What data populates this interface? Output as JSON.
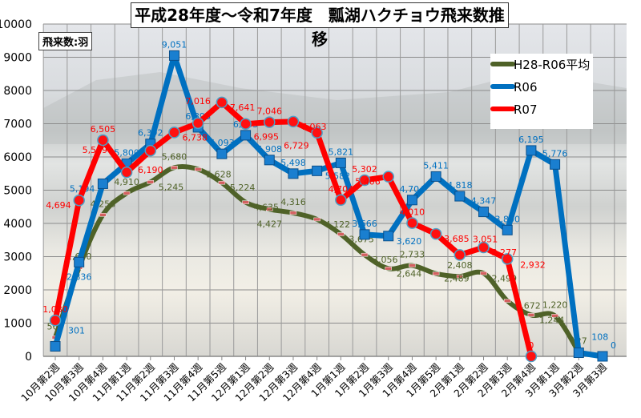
{
  "chart_data": {
    "type": "line",
    "title": "平成28年度～令和7年度　瓢湖ハクチョウ飛来数推移",
    "ylabel": "飛来数:羽",
    "ylim": [
      0,
      10000
    ],
    "yticks": [
      0,
      1000,
      2000,
      3000,
      4000,
      5000,
      6000,
      7000,
      8000,
      9000,
      10000
    ],
    "grid": true,
    "legend_position": "top-right",
    "categories": [
      "10月第2週",
      "10月第3週",
      "10月第4週",
      "11月第1週",
      "11月第2週",
      "11月第3週",
      "11月第4週",
      "11月第5週",
      "12月第1週",
      "12月第2週",
      "12月第3週",
      "12月第4週",
      "1月第1週",
      "1月第2週",
      "1月第3週",
      "1月第4週",
      "1月第5週",
      "2月第1週",
      "2月第2週",
      "2月第3週",
      "2月第4週",
      "3月第1週",
      "3月第2週",
      "3月第3週"
    ],
    "series": [
      {
        "name": "H28-R06平均",
        "color": "#4f6228",
        "smooth": true,
        "marker": "dash",
        "values": [
          569,
          2670,
          4258,
          4910,
          5245,
          5680,
          5628,
          5224,
          4635,
          4427,
          4316,
          4122,
          3675,
          3056,
          2644,
          2733,
          2489,
          2408,
          2499,
          1672,
          1244,
          1220,
          127,
          null
        ]
      },
      {
        "name": "R06",
        "color": "#0070c0",
        "smooth": false,
        "marker": "square",
        "values": [
          301,
          2836,
          5194,
          5800,
          6392,
          9051,
          6893,
          6093,
          6653,
          5908,
          5498,
          5582,
          5821,
          3666,
          3620,
          4704,
          5411,
          4818,
          4347,
          3800,
          6195,
          5776,
          108,
          0
        ]
      },
      {
        "name": "R07",
        "color": "#ff0000",
        "smooth": false,
        "marker": "circle",
        "values": [
          1080,
          4694,
          6505,
          5539,
          6190,
          6738,
          7016,
          7641,
          6995,
          7046,
          7063,
          6729,
          4704,
          5302,
          5406,
          4010,
          3685,
          3051,
          3277,
          2932,
          0,
          null,
          null,
          null
        ]
      }
    ]
  }
}
